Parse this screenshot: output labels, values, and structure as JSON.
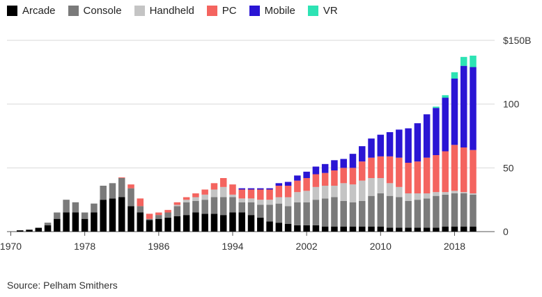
{
  "chart_data": {
    "type": "bar",
    "stacked": true,
    "title": "",
    "xlabel": "",
    "ylabel": "",
    "ylim": [
      0,
      155
    ],
    "yticks": [
      {
        "value": 0,
        "label": "0"
      },
      {
        "value": 50,
        "label": "50"
      },
      {
        "value": 100,
        "label": "100"
      },
      {
        "value": 150,
        "label": "$150B"
      }
    ],
    "xticks": [
      "1970",
      "1978",
      "1986",
      "1994",
      "2002",
      "2010",
      "2018"
    ],
    "legend_position": "top-left",
    "grid": "horizontal",
    "categories": [
      "1971",
      "1972",
      "1973",
      "1974",
      "1975",
      "1976",
      "1977",
      "1978",
      "1979",
      "1980",
      "1981",
      "1982",
      "1983",
      "1984",
      "1985",
      "1986",
      "1987",
      "1988",
      "1989",
      "1990",
      "1991",
      "1992",
      "1993",
      "1994",
      "1995",
      "1996",
      "1997",
      "1998",
      "1999",
      "2000",
      "2001",
      "2002",
      "2003",
      "2004",
      "2005",
      "2006",
      "2007",
      "2008",
      "2009",
      "2010",
      "2011",
      "2012",
      "2013",
      "2014",
      "2015",
      "2016",
      "2017",
      "2018",
      "2019",
      "2020"
    ],
    "series": [
      {
        "name": "Arcade",
        "color": "#000000",
        "values": [
          1,
          1.5,
          3,
          5,
          10,
          15,
          15,
          10,
          15,
          25,
          26,
          27,
          20,
          15,
          9,
          10,
          11,
          12,
          13,
          15,
          14,
          14,
          13,
          15,
          15,
          13,
          11,
          8,
          7,
          6,
          5,
          5,
          5,
          4,
          4,
          4,
          4,
          4,
          4,
          4,
          3,
          3,
          3,
          3,
          3,
          3,
          4,
          4,
          4,
          4
        ]
      },
      {
        "name": "Console",
        "color": "#7a7a7a",
        "values": [
          0,
          0,
          0,
          2,
          5,
          10,
          8,
          5,
          7,
          11,
          12,
          15,
          14,
          5,
          1,
          3,
          4,
          8,
          10,
          9,
          11,
          13,
          14,
          12,
          8,
          10,
          10,
          13,
          15,
          14,
          18,
          18,
          20,
          22,
          23,
          20,
          19,
          20,
          24,
          26,
          25,
          24,
          21,
          22,
          23,
          25,
          25,
          26,
          26,
          25
        ]
      },
      {
        "name": "Handheld",
        "color": "#c4c4c4",
        "values": [
          0,
          0,
          0,
          0,
          0,
          0,
          0,
          0,
          0,
          0,
          0,
          0,
          0,
          0,
          0,
          0,
          0,
          1,
          2,
          3,
          4,
          6,
          8,
          2,
          3,
          3,
          4,
          4,
          5,
          7,
          8,
          9,
          10,
          10,
          9,
          14,
          14,
          16,
          14,
          12,
          10,
          8,
          6,
          5,
          4,
          3,
          2,
          2,
          1,
          1
        ]
      },
      {
        "name": "PC",
        "color": "#f4645f",
        "values": [
          0,
          0,
          0,
          0,
          0,
          0,
          0,
          0,
          0,
          0,
          0,
          0.5,
          3,
          6,
          4,
          2,
          2,
          2,
          2,
          3,
          4,
          5,
          7,
          8,
          7,
          7,
          8,
          8,
          9,
          9,
          9,
          10,
          10,
          10,
          12,
          12,
          13,
          15,
          16,
          17,
          21,
          23,
          24,
          25,
          28,
          29,
          32,
          36,
          35,
          34
        ]
      },
      {
        "name": "Mobile",
        "color": "#2a15d4",
        "values": [
          0,
          0,
          0,
          0,
          0,
          0,
          0,
          0,
          0,
          0,
          0,
          0,
          0,
          0,
          0,
          0,
          0,
          0,
          0,
          0,
          0,
          0,
          0,
          0,
          1,
          1,
          1,
          1,
          2,
          3,
          4,
          5,
          6,
          7,
          8,
          7,
          11,
          12,
          15,
          17,
          19,
          22,
          27,
          30,
          34,
          37,
          42,
          52,
          64,
          65
        ]
      },
      {
        "name": "VR",
        "color": "#2de3b4",
        "values": [
          0,
          0,
          0,
          0,
          0,
          0,
          0,
          0,
          0,
          0,
          0,
          0,
          0,
          0,
          0,
          0,
          0,
          0,
          0,
          0,
          0,
          0,
          0,
          0,
          0,
          0,
          0,
          0,
          0,
          0,
          0,
          0,
          0,
          0,
          0,
          0,
          0,
          0,
          0,
          0,
          0,
          0,
          0,
          0,
          0,
          1,
          2,
          5,
          7,
          9
        ]
      }
    ]
  },
  "footer": {
    "source": "Source: Pelham Smithers"
  }
}
